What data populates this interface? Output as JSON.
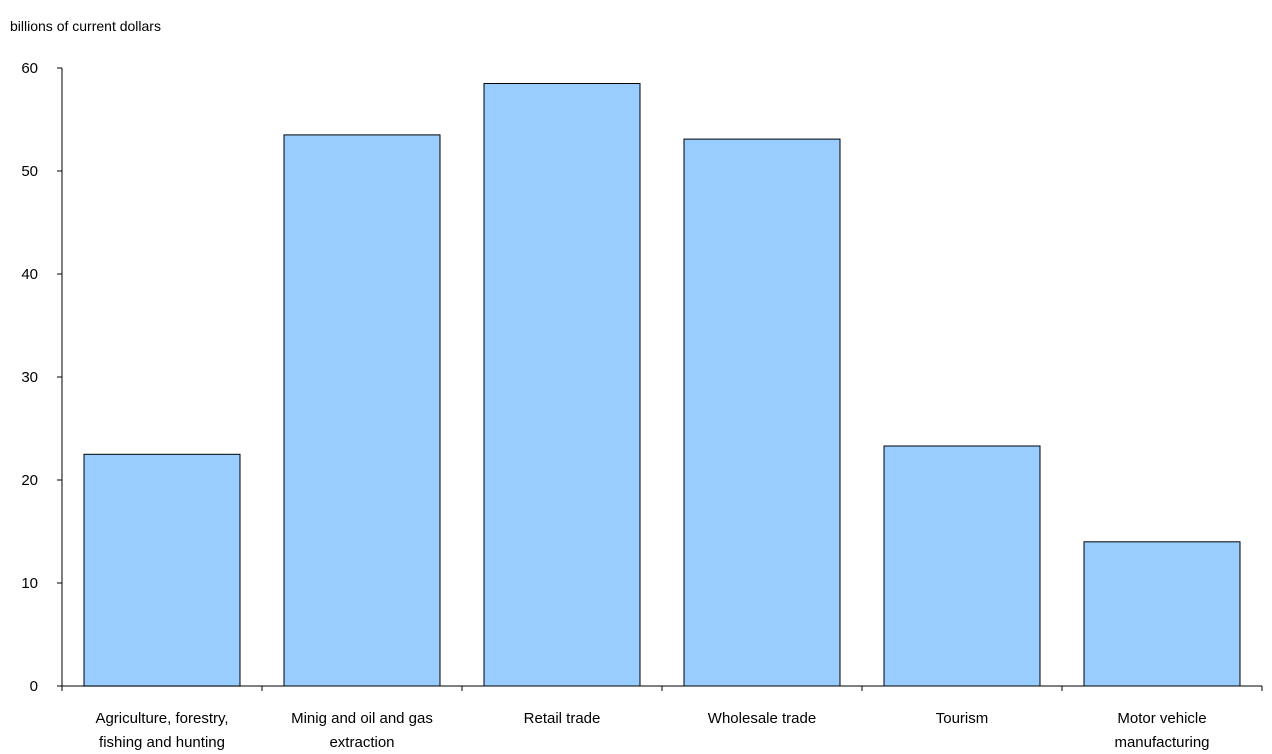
{
  "chart_data": {
    "type": "bar",
    "title": "",
    "ylabel": "billions of current dollars",
    "xlabel": "",
    "ylim": [
      0,
      60
    ],
    "yticks": [
      0,
      10,
      20,
      30,
      40,
      50,
      60
    ],
    "grid": false,
    "legend": "none",
    "bar_color": "#99ccff",
    "bar_edge_color": "#000000",
    "categories": [
      [
        "Agriculture, forestry,",
        "fishing and hunting"
      ],
      [
        "Minig and oil and gas",
        "extraction"
      ],
      [
        "Retail trade"
      ],
      [
        "Wholesale trade"
      ],
      [
        "Tourism"
      ],
      [
        "Motor vehicle",
        "manufacturing"
      ]
    ],
    "values": [
      22.5,
      53.5,
      58.5,
      53.1,
      23.3,
      14.0
    ]
  }
}
